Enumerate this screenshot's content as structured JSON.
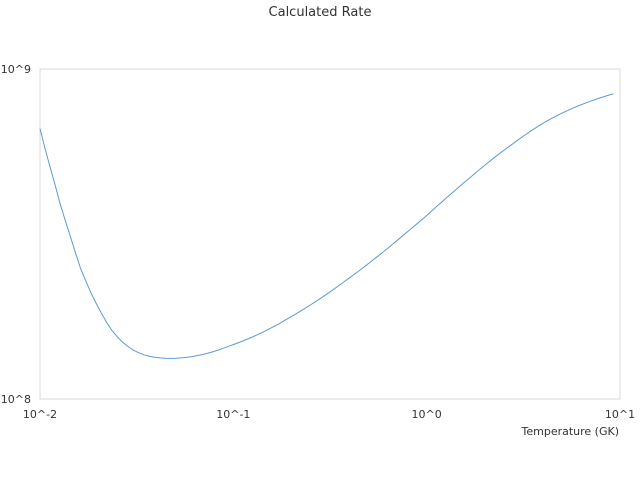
{
  "chart_data": {
    "type": "line",
    "title": "Calculated Rate",
    "xlabel": "Temperature (GK)",
    "ylabel": "",
    "x_scale": "log",
    "y_scale": "log",
    "xlim": [
      0.01,
      10
    ],
    "ylim": [
      100000000,
      1000000000
    ],
    "x_ticks": [
      "10^-2",
      "10^-1",
      "10^0",
      "10^1"
    ],
    "y_ticks": [
      "10^8",
      "10^9"
    ],
    "grid": false,
    "legend": "none",
    "line_color": "#5b9bd5",
    "series": [
      {
        "x": [
          0.01,
          0.0106,
          0.0113,
          0.012,
          0.0127,
          0.0135,
          0.0144,
          0.0153,
          0.0162,
          0.0173,
          0.0184,
          0.0196,
          0.0209,
          0.0222,
          0.0236,
          0.0252,
          0.0268,
          0.0286,
          0.0305,
          0.0325,
          0.0346,
          0.0368,
          0.0392,
          0.0417,
          0.0444,
          0.0474,
          0.0505,
          0.0538,
          0.0573,
          0.061,
          0.0651,
          0.0694,
          0.074,
          0.0789,
          0.0841,
          0.0897,
          0.0957,
          0.102,
          0.109,
          0.116,
          0.124,
          0.132,
          0.141,
          0.15,
          0.16,
          0.171,
          0.182,
          0.194,
          0.207,
          0.221,
          0.236,
          0.252,
          0.269,
          0.287,
          0.306,
          0.327,
          0.349,
          0.372,
          0.397,
          0.424,
          0.453,
          0.484,
          0.516,
          0.551,
          0.589,
          0.628,
          0.671,
          0.716,
          0.765,
          0.817,
          0.872,
          0.931,
          0.994,
          1.06,
          1.13,
          1.21,
          1.29,
          1.38,
          1.47,
          1.57,
          1.68,
          1.79,
          1.91,
          2.04,
          2.18,
          2.33,
          2.49,
          2.66,
          2.84,
          3.03,
          3.24,
          3.46,
          3.69,
          3.94,
          4.21,
          4.5,
          4.8,
          5.13,
          5.48,
          5.85,
          6.25,
          6.67,
          7.12,
          7.61,
          8.12,
          8.67,
          9.26
        ],
        "y": [
          660000000,
          576000000,
          502000000,
          443000000,
          391000000,
          348000000,
          309000000,
          276000000,
          249000000,
          227000000,
          209000000,
          194000000,
          181000000,
          170000000,
          161000000,
          154000000,
          148500000,
          144000000,
          140500000,
          138000000,
          136000000,
          134800000,
          133800000,
          133200000,
          132900000,
          132800000,
          132900000,
          133200000,
          133700000,
          134400000,
          135300000,
          136400000,
          137700000,
          139200000,
          140900000,
          142800000,
          144800000,
          146800000,
          149000000,
          151200000,
          153600000,
          156200000,
          159000000,
          162000000,
          165200000,
          168600000,
          172200000,
          176000000,
          180000000,
          184200000,
          188600000,
          193200000,
          198000000,
          203000000,
          208500000,
          214000000,
          220000000,
          226000000,
          232500000,
          239000000,
          246000000,
          253500000,
          261000000,
          269000000,
          277500000,
          286000000,
          295500000,
          305000000,
          315000000,
          325500000,
          336000000,
          347000000,
          358500000,
          371000000,
          384000000,
          397500000,
          411000000,
          425000000,
          439500000,
          454000000,
          469000000,
          484500000,
          500000000,
          516000000,
          532500000,
          549000000,
          565000000,
          581500000,
          598000000,
          615000000,
          632000000,
          649000000,
          665000000,
          681000000,
          697000000,
          712000000,
          726000000,
          740000000,
          753000000,
          766000000,
          778000000,
          790000000,
          801000000,
          812000000,
          822000000,
          832000000,
          841000000
        ]
      }
    ]
  }
}
